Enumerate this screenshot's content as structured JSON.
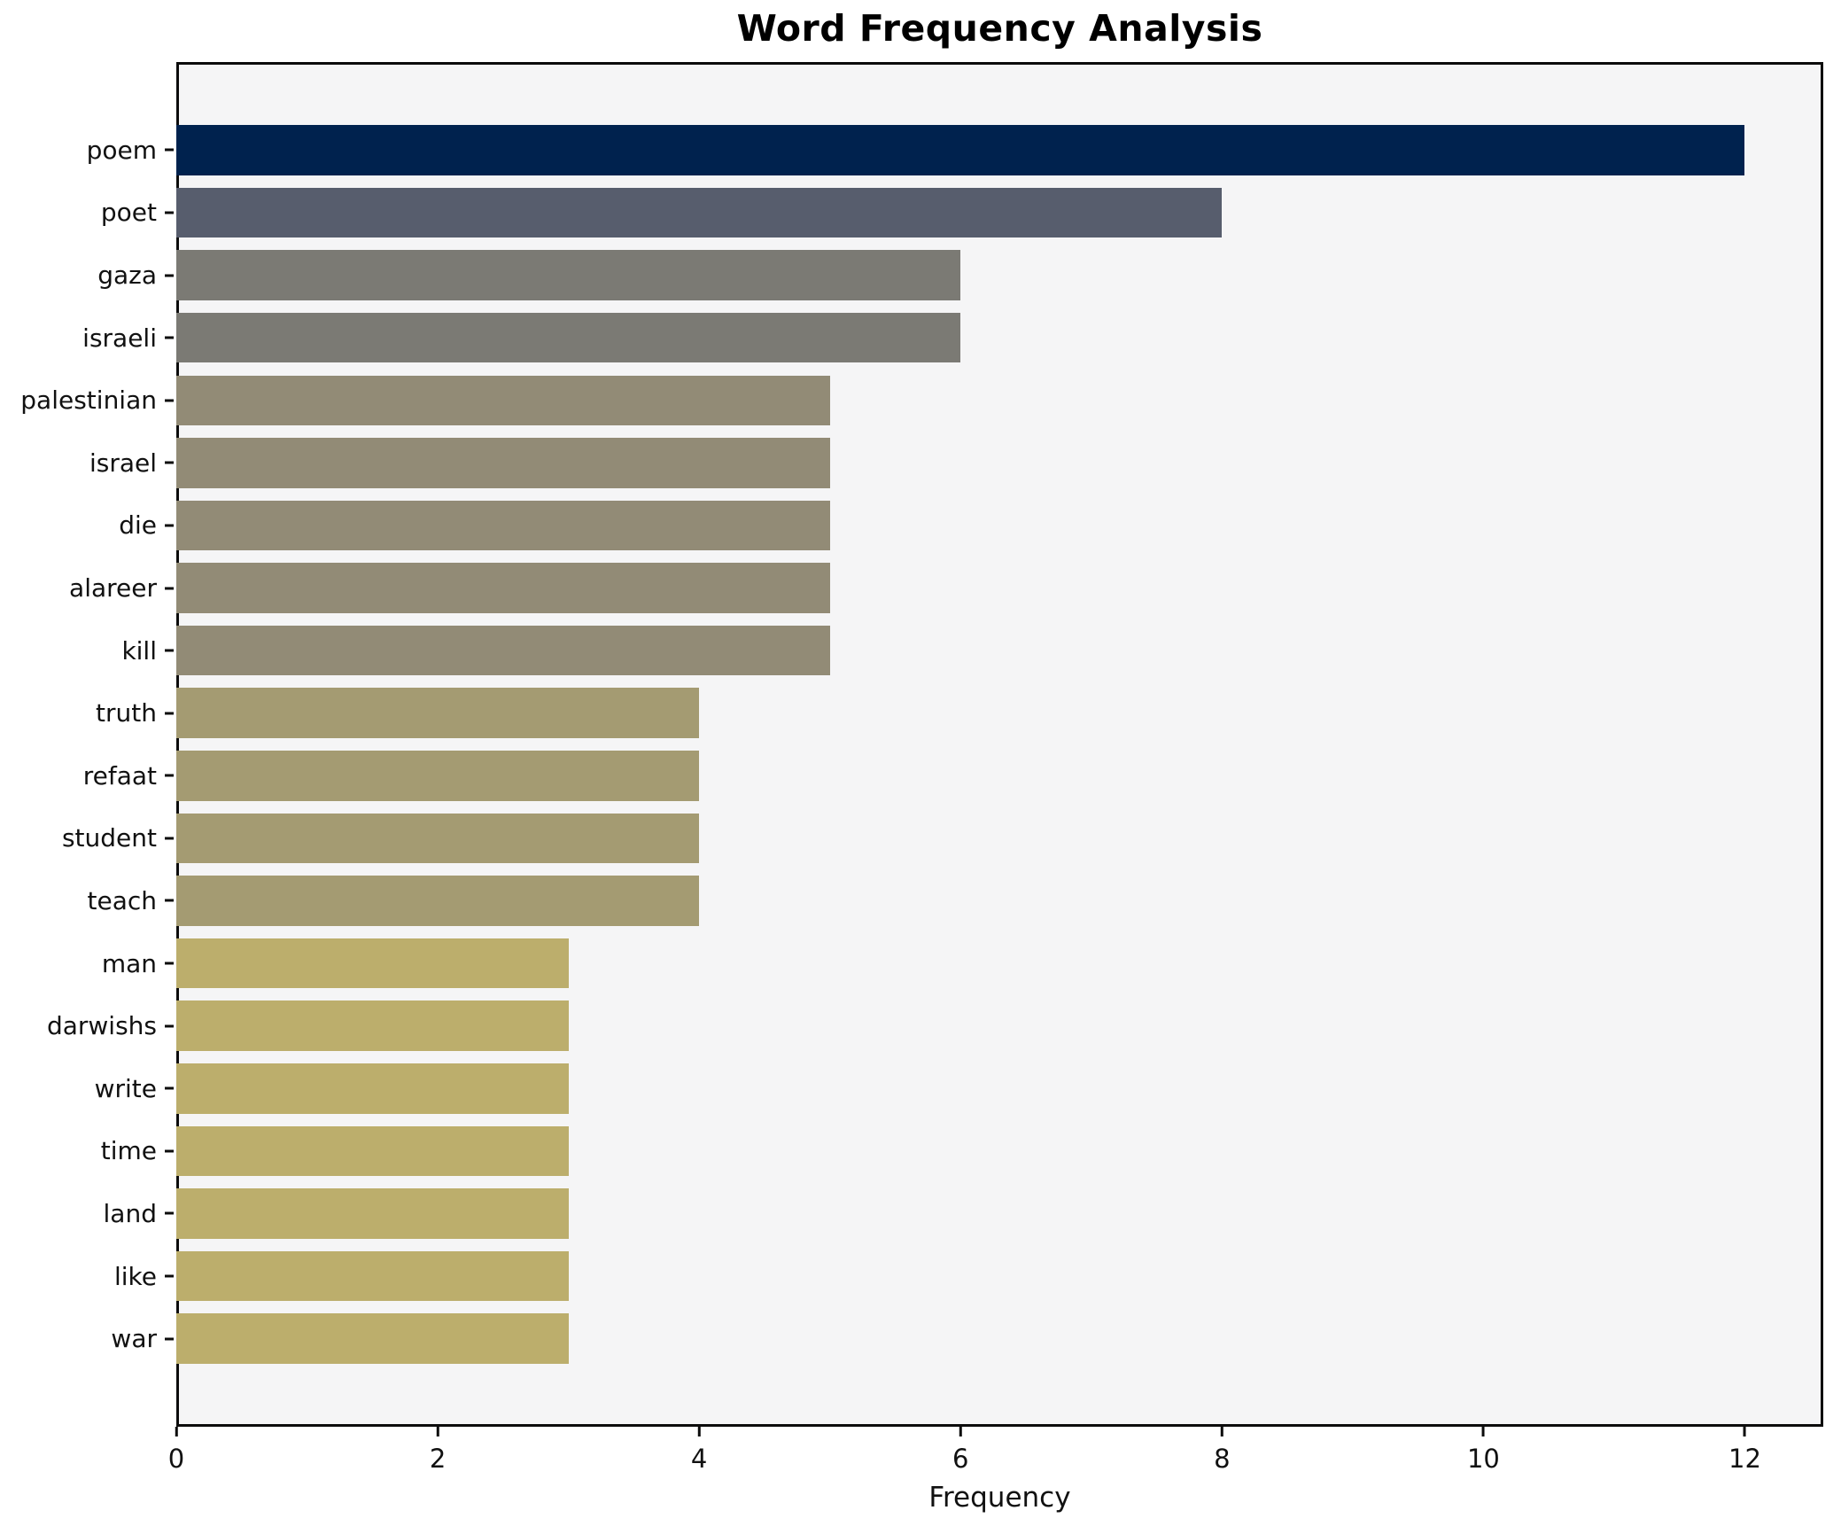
{
  "chart_data": {
    "type": "bar",
    "orientation": "horizontal",
    "title": "Word Frequency Analysis",
    "xlabel": "Frequency",
    "ylabel": "",
    "categories": [
      "poem",
      "poet",
      "gaza",
      "israeli",
      "palestinian",
      "israel",
      "die",
      "alareer",
      "kill",
      "truth",
      "refaat",
      "student",
      "teach",
      "man",
      "darwishs",
      "write",
      "time",
      "land",
      "like",
      "war"
    ],
    "values": [
      12,
      8,
      6,
      6,
      5,
      5,
      5,
      5,
      5,
      4,
      4,
      4,
      4,
      3,
      3,
      3,
      3,
      3,
      3,
      3
    ],
    "bar_colors": [
      "#00224e",
      "#575d6d",
      "#7b7a74",
      "#7b7a74",
      "#928b76",
      "#928b76",
      "#928b76",
      "#928b76",
      "#928b76",
      "#a49b72",
      "#a49b72",
      "#a49b72",
      "#a49b72",
      "#bcae6c",
      "#bcae6c",
      "#bcae6c",
      "#bcae6c",
      "#bcae6c",
      "#bcae6c",
      "#bcae6c"
    ],
    "x_ticks": [
      0,
      2,
      4,
      6,
      8,
      10,
      12
    ],
    "xlim": [
      0,
      12.6
    ],
    "grid": false,
    "legend": "none",
    "plot_bg_color": "#f5f5f6",
    "figure_bg_color": "#ffffff",
    "axis_color": "#0c0c0c",
    "colormap": "cividis (value-mapped, reversed)"
  }
}
